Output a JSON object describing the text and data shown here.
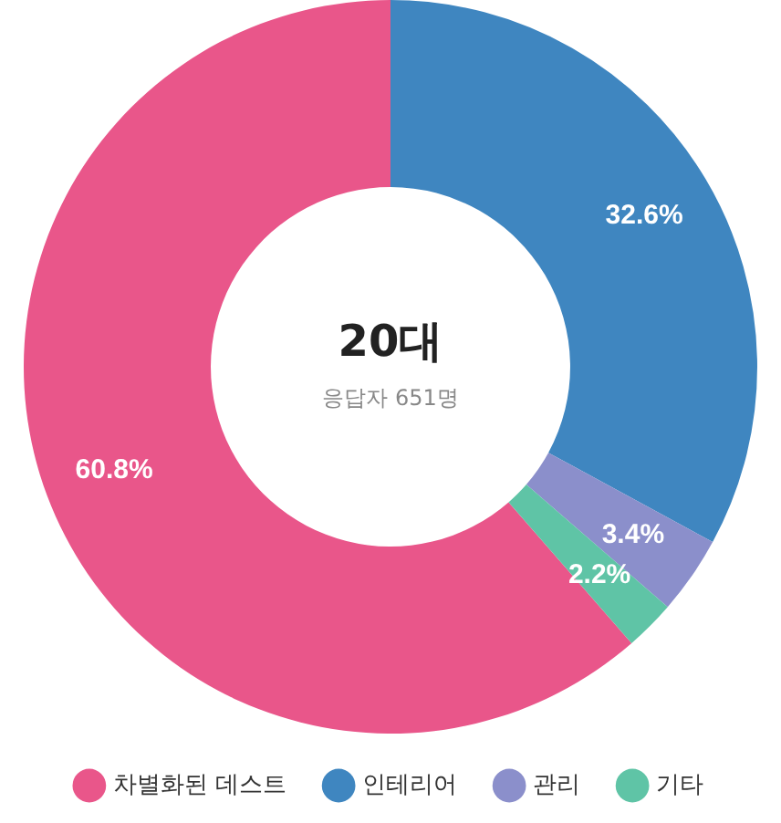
{
  "chart_data": {
    "type": "donut",
    "title": "20대",
    "subtitle": "응답자 651명",
    "categories": [
      "차별화된 데스트",
      "인테리어",
      "관리",
      "기타"
    ],
    "values": [
      60.8,
      32.6,
      3.4,
      2.2
    ],
    "colors": [
      "#e9568a",
      "#3f86c0",
      "#8b8fcb",
      "#5fc4a6"
    ],
    "value_labels": [
      "60.8%",
      "32.6%",
      "3.4%",
      "2.2%"
    ],
    "legend": "bottom"
  }
}
